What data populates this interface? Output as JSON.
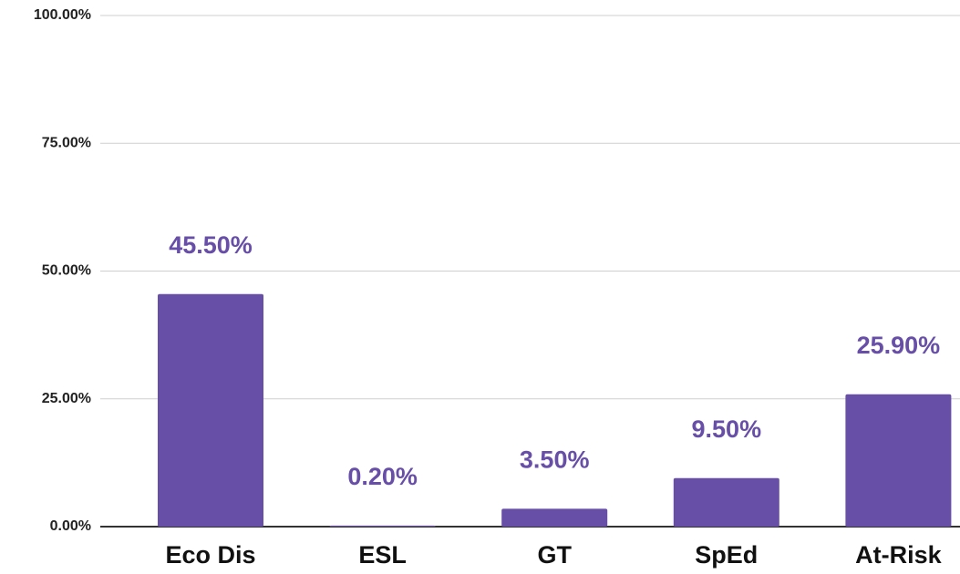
{
  "chart_data": {
    "type": "bar",
    "categories": [
      "Eco Dis",
      "ESL",
      "GT",
      "SpEd",
      "At-Risk"
    ],
    "values": [
      45.5,
      0.2,
      3.5,
      9.5,
      25.9
    ],
    "value_labels": [
      "45.50%",
      "0.20%",
      "3.50%",
      "9.50%",
      "25.90%"
    ],
    "color": "#674ea7",
    "ylim": [
      0,
      100
    ],
    "yticks": [
      {
        "value": 0,
        "label": "0.00%"
      },
      {
        "value": 25,
        "label": "25.00%"
      },
      {
        "value": 50,
        "label": "50.00%"
      },
      {
        "value": 75,
        "label": "75.00%"
      },
      {
        "value": 100,
        "label": "100.00%"
      }
    ],
    "grid": true
  }
}
